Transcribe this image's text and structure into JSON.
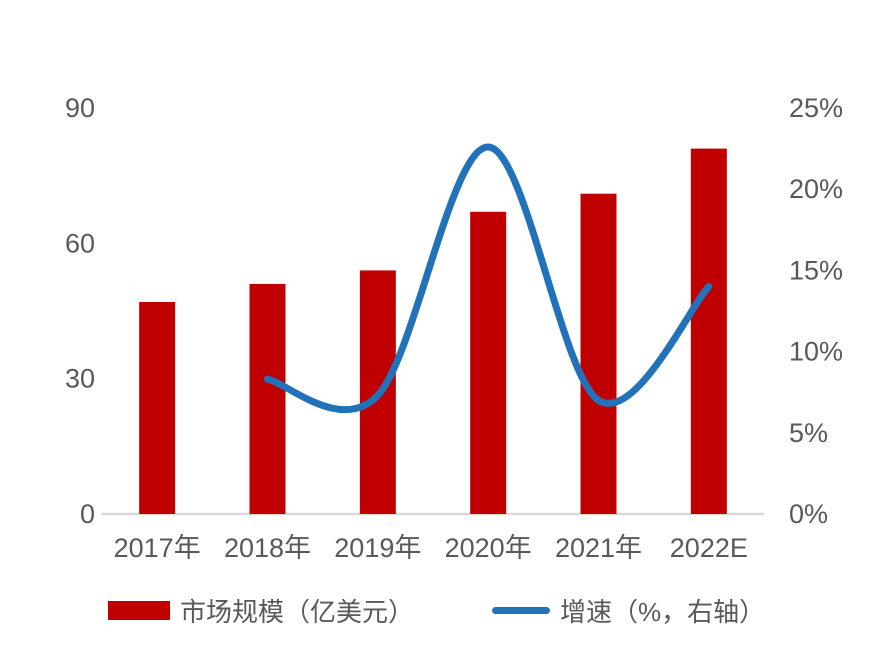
{
  "chart_data": {
    "type": "bar",
    "subtype": "combo-bar-line",
    "title": "",
    "categories": [
      "2017年",
      "2018年",
      "2019年",
      "2020年",
      "2021年",
      "2022E"
    ],
    "series": [
      {
        "name": "市场规模（亿美元）",
        "type": "bar",
        "axis": "left",
        "color": "#c00000",
        "values": [
          47,
          51,
          54,
          67,
          71,
          81
        ]
      },
      {
        "name": "增速（%，右轴）",
        "type": "line",
        "axis": "right",
        "color": "#2272b9",
        "values": [
          null,
          8.3,
          7.3,
          22.6,
          7.0,
          14.0
        ]
      }
    ],
    "left_axis": {
      "min": 0,
      "max": 90,
      "tick_labels_top_to_bottom": [
        "90",
        "60",
        "30",
        "0"
      ]
    },
    "right_axis": {
      "min": 0,
      "max": 25,
      "tick_labels_top_to_bottom": [
        "25%",
        "20%",
        "15%",
        "10%",
        "5%",
        "0%"
      ]
    },
    "grid": false,
    "legend_position": "bottom",
    "baseline_color": "#d9d9d9",
    "tick_text_color": "#595959"
  }
}
